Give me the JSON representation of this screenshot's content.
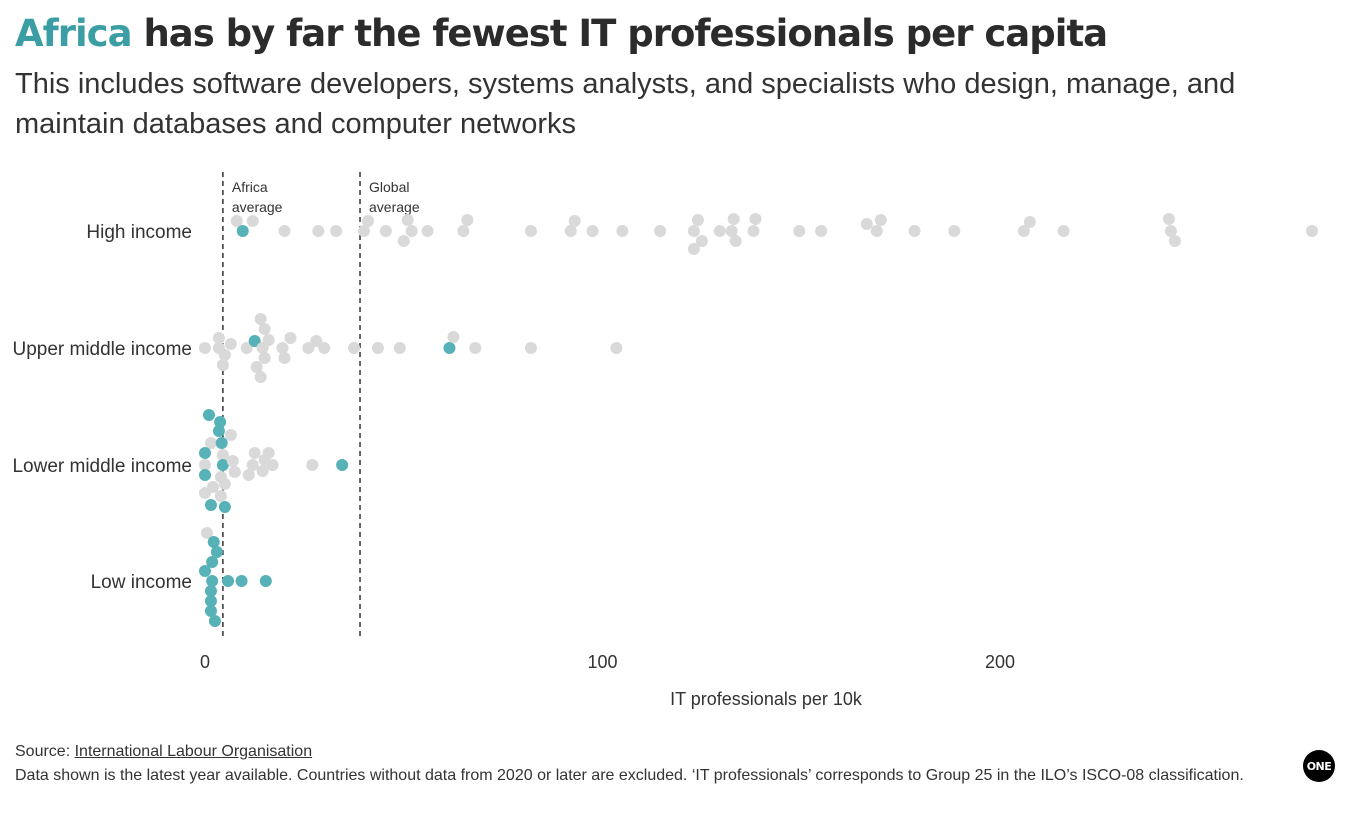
{
  "header": {
    "title_highlight": "Africa",
    "title_rest": " has by far the fewest IT professionals per capita",
    "subtitle": "This includes software developers, systems analysts, and specialists who design, manage, and maintain databases and computer networks"
  },
  "colors": {
    "africa": "#56b2b6",
    "other": "#d9d9d9",
    "accent": "#3a9ea4"
  },
  "footer": {
    "source_label": "Source: ",
    "source_link": "International Labour Organisation",
    "note": "Data shown is the latest year available. Countries without data from 2020 or later are excluded. ‘IT professionals’ corresponds to Group 25 in the ILO’s ISCO-08 classification."
  },
  "logo": {
    "text": "ONE"
  },
  "chart_data": {
    "type": "scatter",
    "xlabel": "IT professionals per 10k",
    "xlim": [
      0,
      280
    ],
    "x_ticks": [
      0,
      100,
      200
    ],
    "categories": [
      "High income",
      "Upper middle income",
      "Lower middle income",
      "Low income"
    ],
    "reference_lines": [
      {
        "label_line1": "Africa",
        "label_line2": "average",
        "x": 4.5
      },
      {
        "label_line1": "Global",
        "label_line2": "average",
        "x": 39
      }
    ],
    "series": [
      {
        "name": "High income",
        "points": [
          {
            "x": 8,
            "o": -1,
            "africa": false
          },
          {
            "x": 9.5,
            "o": 0,
            "africa": true
          },
          {
            "x": 12,
            "o": -1,
            "africa": false
          },
          {
            "x": 20,
            "o": 0,
            "africa": false
          },
          {
            "x": 28.5,
            "o": 0,
            "africa": false
          },
          {
            "x": 33,
            "o": 0,
            "africa": false
          },
          {
            "x": 40,
            "o": 0,
            "africa": false
          },
          {
            "x": 41,
            "o": -1,
            "africa": false
          },
          {
            "x": 45.5,
            "o": 0,
            "africa": false
          },
          {
            "x": 50,
            "o": 1,
            "africa": false
          },
          {
            "x": 51,
            "o": -1.1,
            "africa": false
          },
          {
            "x": 52,
            "o": 0,
            "africa": false
          },
          {
            "x": 56,
            "o": 0,
            "africa": false
          },
          {
            "x": 65,
            "o": 0,
            "africa": false
          },
          {
            "x": 66,
            "o": -1.1,
            "africa": false
          },
          {
            "x": 82,
            "o": 0,
            "africa": false
          },
          {
            "x": 92,
            "o": 0,
            "africa": false
          },
          {
            "x": 93,
            "o": -1,
            "africa": false
          },
          {
            "x": 97.5,
            "o": 0,
            "africa": false
          },
          {
            "x": 105,
            "o": 0,
            "africa": false
          },
          {
            "x": 114.5,
            "o": 0,
            "africa": false
          },
          {
            "x": 123,
            "o": 0,
            "africa": false
          },
          {
            "x": 123,
            "o": 1.8,
            "africa": false
          },
          {
            "x": 124,
            "o": -1.1,
            "africa": false
          },
          {
            "x": 125,
            "o": 1,
            "africa": false
          },
          {
            "x": 129.5,
            "o": 0,
            "africa": false
          },
          {
            "x": 132.5,
            "o": 0,
            "africa": false
          },
          {
            "x": 133,
            "o": -1.2,
            "africa": false
          },
          {
            "x": 133.5,
            "o": 1,
            "africa": false
          },
          {
            "x": 138,
            "o": 0,
            "africa": false
          },
          {
            "x": 138.5,
            "o": -1.2,
            "africa": false
          },
          {
            "x": 149.5,
            "o": 0,
            "africa": false
          },
          {
            "x": 155,
            "o": 0,
            "africa": false
          },
          {
            "x": 166.5,
            "o": -0.7,
            "africa": false
          },
          {
            "x": 169,
            "o": 0,
            "africa": false
          },
          {
            "x": 170,
            "o": -1.1,
            "africa": false
          },
          {
            "x": 178.5,
            "o": 0,
            "africa": false
          },
          {
            "x": 188.5,
            "o": 0,
            "africa": false
          },
          {
            "x": 206,
            "o": 0,
            "africa": false
          },
          {
            "x": 207.5,
            "o": -0.9,
            "africa": false
          },
          {
            "x": 216,
            "o": 0,
            "africa": false
          },
          {
            "x": 242.5,
            "o": -1.2,
            "africa": false
          },
          {
            "x": 243,
            "o": 0,
            "africa": false
          },
          {
            "x": 244,
            "o": 1,
            "africa": false
          },
          {
            "x": 278.5,
            "o": 0,
            "africa": false
          }
        ]
      },
      {
        "name": "Upper middle income",
        "points": [
          {
            "x": 0,
            "o": 0,
            "africa": false
          },
          {
            "x": 3.5,
            "o": 0,
            "africa": false
          },
          {
            "x": 3.5,
            "o": -1,
            "africa": false
          },
          {
            "x": 4.5,
            "o": 1.7,
            "africa": false
          },
          {
            "x": 5,
            "o": 0.7,
            "africa": false
          },
          {
            "x": 6.5,
            "o": -0.4,
            "africa": false
          },
          {
            "x": 10.5,
            "o": 0,
            "africa": false
          },
          {
            "x": 12.5,
            "o": -0.7,
            "africa": true
          },
          {
            "x": 13,
            "o": 1.9,
            "africa": false
          },
          {
            "x": 14,
            "o": -2.9,
            "africa": false
          },
          {
            "x": 14,
            "o": 2.9,
            "africa": false
          },
          {
            "x": 14.5,
            "o": 0,
            "africa": false
          },
          {
            "x": 15,
            "o": -1.9,
            "africa": false
          },
          {
            "x": 15,
            "o": 1,
            "africa": false
          },
          {
            "x": 16,
            "o": -0.8,
            "africa": false
          },
          {
            "x": 19.5,
            "o": 0,
            "africa": false
          },
          {
            "x": 20,
            "o": 1,
            "africa": false
          },
          {
            "x": 21.5,
            "o": -1,
            "africa": false
          },
          {
            "x": 26,
            "o": 0,
            "africa": false
          },
          {
            "x": 28,
            "o": -0.7,
            "africa": false
          },
          {
            "x": 30,
            "o": 0,
            "africa": false
          },
          {
            "x": 37.5,
            "o": 0,
            "africa": false
          },
          {
            "x": 43.5,
            "o": 0,
            "africa": false
          },
          {
            "x": 49,
            "o": 0,
            "africa": false
          },
          {
            "x": 61.5,
            "o": 0,
            "africa": true
          },
          {
            "x": 62.5,
            "o": -1.1,
            "africa": false
          },
          {
            "x": 68,
            "o": 0,
            "africa": false
          },
          {
            "x": 82,
            "o": 0,
            "africa": false
          },
          {
            "x": 103.5,
            "o": 0,
            "africa": false
          }
        ]
      },
      {
        "name": "Lower middle income",
        "points": [
          {
            "x": 1,
            "o": -5,
            "africa": true
          },
          {
            "x": 3.8,
            "o": -4.3,
            "africa": true
          },
          {
            "x": 3.5,
            "o": -3.4,
            "africa": true
          },
          {
            "x": 6.5,
            "o": -3,
            "africa": false
          },
          {
            "x": 1.5,
            "o": -2.2,
            "africa": false
          },
          {
            "x": 4.2,
            "o": -2.2,
            "africa": true
          },
          {
            "x": 0,
            "o": -1.2,
            "africa": true
          },
          {
            "x": 4.5,
            "o": -1,
            "africa": false
          },
          {
            "x": 12.5,
            "o": -1.2,
            "africa": false
          },
          {
            "x": 16,
            "o": -1.2,
            "africa": false
          },
          {
            "x": 0,
            "o": 0,
            "africa": false
          },
          {
            "x": 4.5,
            "o": 0,
            "africa": true
          },
          {
            "x": 7,
            "o": -0.4,
            "africa": false
          },
          {
            "x": 12,
            "o": 0,
            "africa": false
          },
          {
            "x": 15,
            "o": -0.5,
            "africa": false
          },
          {
            "x": 17,
            "o": 0,
            "africa": false
          },
          {
            "x": 27,
            "o": 0,
            "africa": false
          },
          {
            "x": 34.5,
            "o": 0,
            "africa": true
          },
          {
            "x": 0,
            "o": 1,
            "africa": true
          },
          {
            "x": 7.5,
            "o": 0.7,
            "africa": false
          },
          {
            "x": 11,
            "o": 1,
            "africa": false
          },
          {
            "x": 14.5,
            "o": 0.6,
            "africa": false
          },
          {
            "x": 4,
            "o": 1.2,
            "africa": false
          },
          {
            "x": 2,
            "o": 2.2,
            "africa": false
          },
          {
            "x": 5,
            "o": 1.9,
            "africa": false
          },
          {
            "x": 0,
            "o": 2.8,
            "africa": false
          },
          {
            "x": 4,
            "o": 3.1,
            "africa": false
          },
          {
            "x": 1.5,
            "o": 4,
            "africa": true
          },
          {
            "x": 5,
            "o": 4.2,
            "africa": true
          }
        ]
      },
      {
        "name": "Low income",
        "points": [
          {
            "x": 0.5,
            "o": -4.8,
            "africa": false
          },
          {
            "x": 2.2,
            "o": -3.9,
            "africa": true
          },
          {
            "x": 3,
            "o": -2.9,
            "africa": true
          },
          {
            "x": 1.8,
            "o": -1.9,
            "africa": true
          },
          {
            "x": 0,
            "o": -1,
            "africa": true
          },
          {
            "x": 1.8,
            "o": 0,
            "africa": true
          },
          {
            "x": 5.8,
            "o": 0,
            "africa": true
          },
          {
            "x": 9.2,
            "o": 0,
            "africa": true
          },
          {
            "x": 15.3,
            "o": 0,
            "africa": true
          },
          {
            "x": 1.5,
            "o": 1,
            "africa": true
          },
          {
            "x": 1.5,
            "o": 2,
            "africa": true
          },
          {
            "x": 1.5,
            "o": 3,
            "africa": true
          },
          {
            "x": 2.5,
            "o": 4,
            "africa": true
          }
        ]
      }
    ]
  }
}
